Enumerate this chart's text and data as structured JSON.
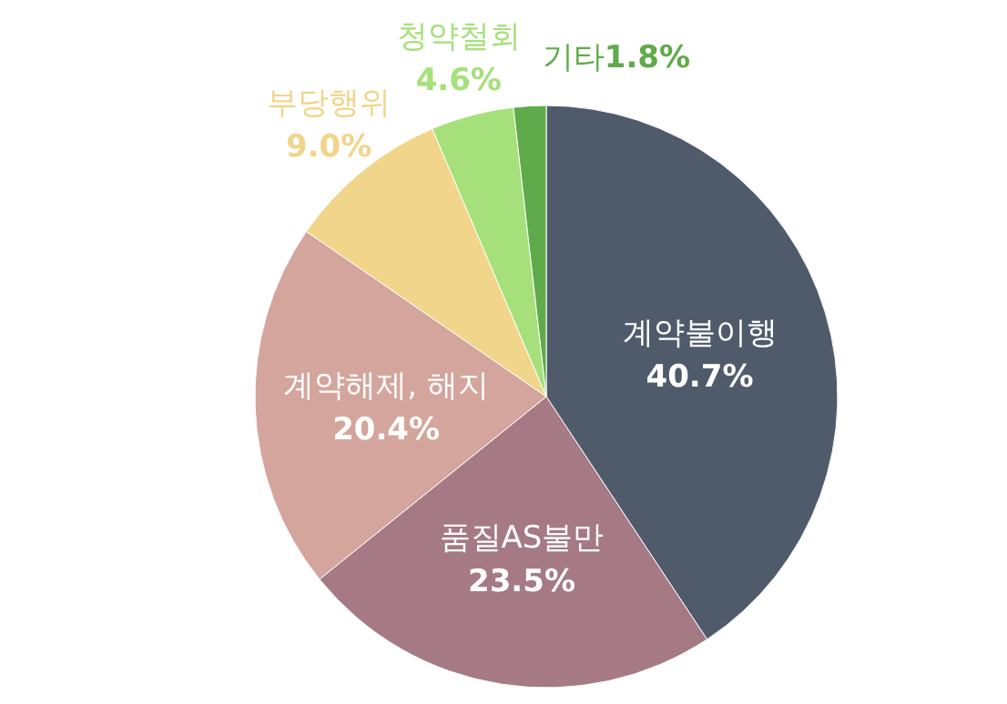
{
  "chart_data": {
    "type": "pie",
    "categories": [
      "계약불이행",
      "품질AS불만",
      "계약해제, 해지",
      "부당행위",
      "청약철회",
      "기타"
    ],
    "values": [
      40.7,
      23.5,
      20.4,
      9.0,
      4.6,
      1.8
    ],
    "colors": [
      "#4f5b6a",
      "#a57a84",
      "#d4a59c",
      "#f0d58a",
      "#a6e07a",
      "#5faa4a"
    ],
    "value_labels": [
      "40.7%",
      "23.5%",
      "20.4%",
      "9.0%",
      "4.6%",
      "1.8%"
    ]
  }
}
